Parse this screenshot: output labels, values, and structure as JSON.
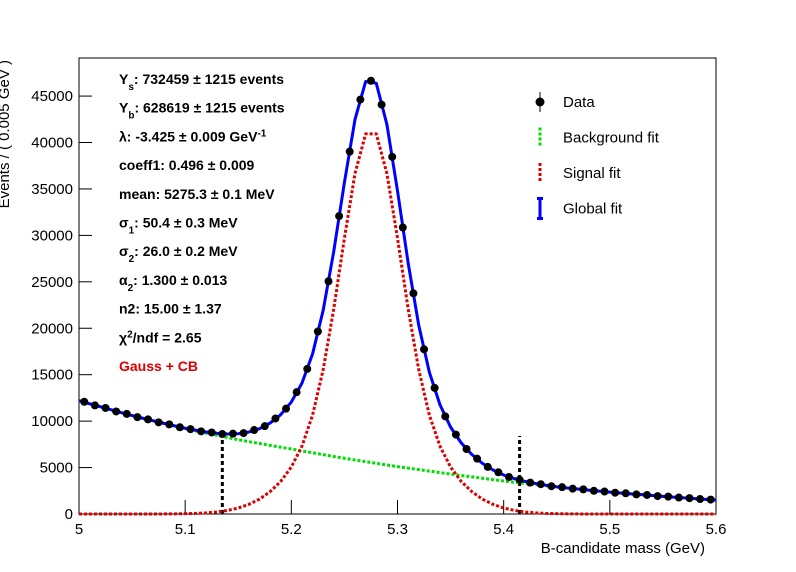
{
  "chart_data": {
    "type": "line",
    "xlabel": "B-candidate mass (GeV)",
    "ylabel": "Events / ( 0.005 GeV )",
    "xlim": [
      5.0,
      5.6
    ],
    "ylim": [
      0,
      49100
    ],
    "xticks": [
      5,
      5.1,
      5.2,
      5.3,
      5.4,
      5.5,
      5.6
    ],
    "yticks": [
      0,
      5000,
      10000,
      15000,
      20000,
      25000,
      30000,
      35000,
      40000,
      45000
    ],
    "legend": "top-right",
    "x": [
      5.0,
      5.01,
      5.02,
      5.03,
      5.04,
      5.05,
      5.06,
      5.07,
      5.08,
      5.09,
      5.1,
      5.11,
      5.12,
      5.13,
      5.14,
      5.15,
      5.16,
      5.17,
      5.18,
      5.19,
      5.2,
      5.21,
      5.22,
      5.23,
      5.24,
      5.25,
      5.26,
      5.27,
      5.28,
      5.29,
      5.3,
      5.31,
      5.32,
      5.33,
      5.34,
      5.35,
      5.36,
      5.37,
      5.38,
      5.39,
      5.4,
      5.41,
      5.42,
      5.43,
      5.44,
      5.45,
      5.46,
      5.47,
      5.48,
      5.49,
      5.5,
      5.51,
      5.52,
      5.53,
      5.54,
      5.55,
      5.56,
      5.57,
      5.58,
      5.59,
      5.6
    ],
    "series": [
      {
        "name": "Data",
        "color": "#000000",
        "style": "points",
        "x": [
          5.005,
          5.015,
          5.025,
          5.035,
          5.045,
          5.055,
          5.065,
          5.075,
          5.085,
          5.095,
          5.105,
          5.115,
          5.125,
          5.135,
          5.145,
          5.155,
          5.165,
          5.175,
          5.185,
          5.195,
          5.205,
          5.215,
          5.225,
          5.235,
          5.245,
          5.255,
          5.265,
          5.275,
          5.285,
          5.295,
          5.305,
          5.315,
          5.325,
          5.335,
          5.345,
          5.355,
          5.365,
          5.375,
          5.385,
          5.395,
          5.405,
          5.415,
          5.425,
          5.435,
          5.445,
          5.455,
          5.465,
          5.475,
          5.485,
          5.495,
          5.505,
          5.515,
          5.525,
          5.535,
          5.545,
          5.555,
          5.565,
          5.575,
          5.585,
          5.595
        ],
        "values": [
          12080,
          11690,
          11420,
          11040,
          10780,
          10430,
          10190,
          9870,
          9650,
          9340,
          9140,
          8900,
          8780,
          8620,
          8650,
          8710,
          9040,
          9460,
          10280,
          11340,
          13120,
          15620,
          19650,
          25060,
          32080,
          39020,
          44620,
          46650,
          44080,
          38460,
          30850,
          23760,
          17730,
          13580,
          10510,
          8550,
          7000,
          5960,
          5070,
          4490,
          3980,
          3690,
          3380,
          3210,
          2990,
          2890,
          2730,
          2650,
          2500,
          2420,
          2290,
          2230,
          2110,
          2050,
          1930,
          1870,
          1770,
          1710,
          1610,
          1550
        ]
      },
      {
        "name": "Background fit",
        "color": "#00dd00",
        "style": "dashed",
        "values": [
          12200,
          11870,
          11550,
          11230,
          10910,
          10600,
          10310,
          10030,
          9750,
          9470,
          9200,
          8950,
          8710,
          8470,
          8230,
          8000,
          7790,
          7590,
          7390,
          7190,
          7000,
          6790,
          6590,
          6390,
          6190,
          6000,
          5820,
          5640,
          5460,
          5280,
          5100,
          4940,
          4780,
          4620,
          4460,
          4300,
          4150,
          4000,
          3850,
          3700,
          3550,
          3420,
          3290,
          3160,
          3030,
          2900,
          2790,
          2680,
          2570,
          2460,
          2350,
          2260,
          2170,
          2080,
          1990,
          1900,
          1820,
          1740,
          1660,
          1580,
          1500
        ]
      },
      {
        "name": "Signal fit",
        "color": "#dd0000",
        "style": "dashed",
        "values": [
          0,
          0,
          0,
          0,
          0,
          0,
          0,
          0,
          8,
          17,
          34,
          66,
          124,
          223,
          387,
          646,
          1037,
          1599,
          2404,
          3508,
          5056,
          7301,
          10652,
          15547,
          22114,
          29700,
          36678,
          40928,
          40928,
          36678,
          29700,
          22114,
          15547,
          10652,
          7301,
          5056,
          3508,
          2404,
          1599,
          1037,
          646,
          387,
          223,
          124,
          66,
          34,
          17,
          8,
          0,
          0,
          0,
          0,
          0,
          0,
          0,
          0,
          0,
          0,
          0,
          0,
          0
        ]
      },
      {
        "name": "Global fit",
        "color": "#0000ff",
        "style": "solid",
        "values": [
          12200,
          11870,
          11550,
          11230,
          10910,
          10600,
          10310,
          10030,
          9758,
          9487,
          9234,
          9016,
          8834,
          8693,
          8617,
          8646,
          8827,
          9189,
          9794,
          10698,
          12056,
          14091,
          17242,
          21937,
          28304,
          35700,
          42498,
          46568,
          46388,
          41958,
          34800,
          27054,
          20327,
          15272,
          11761,
          9356,
          7658,
          6404,
          5449,
          4737,
          4196,
          3807,
          3513,
          3284,
          3096,
          2934,
          2807,
          2688,
          2570,
          2460,
          2350,
          2260,
          2170,
          2080,
          1990,
          1900,
          1820,
          1740,
          1660,
          1580,
          1500
        ]
      }
    ],
    "vlines": [
      {
        "x": 5.135,
        "top": 8000
      },
      {
        "x": 5.415,
        "top": 8400
      }
    ],
    "annotations": [
      {
        "parts": [
          {
            "text": "Y"
          },
          {
            "text": "s",
            "script": "sub"
          },
          {
            "text": ": 732459 ± 1215 events"
          }
        ]
      },
      {
        "parts": [
          {
            "text": "Y"
          },
          {
            "text": "b",
            "script": "sub"
          },
          {
            "text": ": 628619 ± 1215 events"
          }
        ]
      },
      {
        "parts": [
          {
            "text": "λ: -3.425 ± 0.009 GeV"
          },
          {
            "text": "-1",
            "script": "sup"
          }
        ]
      },
      {
        "parts": [
          {
            "text": "coeff1: 0.496 ± 0.009"
          }
        ]
      },
      {
        "parts": [
          {
            "text": "mean: 5275.3 ± 0.1 MeV"
          }
        ]
      },
      {
        "parts": [
          {
            "text": "σ"
          },
          {
            "text": "1",
            "script": "sub"
          },
          {
            "text": ": 50.4 ± 0.3 MeV"
          }
        ]
      },
      {
        "parts": [
          {
            "text": "σ"
          },
          {
            "text": "2",
            "script": "sub"
          },
          {
            "text": ": 26.0 ± 0.2 MeV"
          }
        ]
      },
      {
        "parts": [
          {
            "text": "α"
          },
          {
            "text": "2",
            "script": "sub"
          },
          {
            "text": ": 1.300 ± 0.013"
          }
        ]
      },
      {
        "parts": [
          {
            "text": "n2: 15.00 ± 1.37"
          }
        ]
      },
      {
        "parts": [
          {
            "text": "χ"
          },
          {
            "text": "2",
            "script": "sup"
          },
          {
            "text": "/ndf = 2.65"
          }
        ]
      },
      {
        "parts": [
          {
            "text": "Gauss + CB"
          }
        ],
        "color": "#dd0000"
      }
    ]
  }
}
